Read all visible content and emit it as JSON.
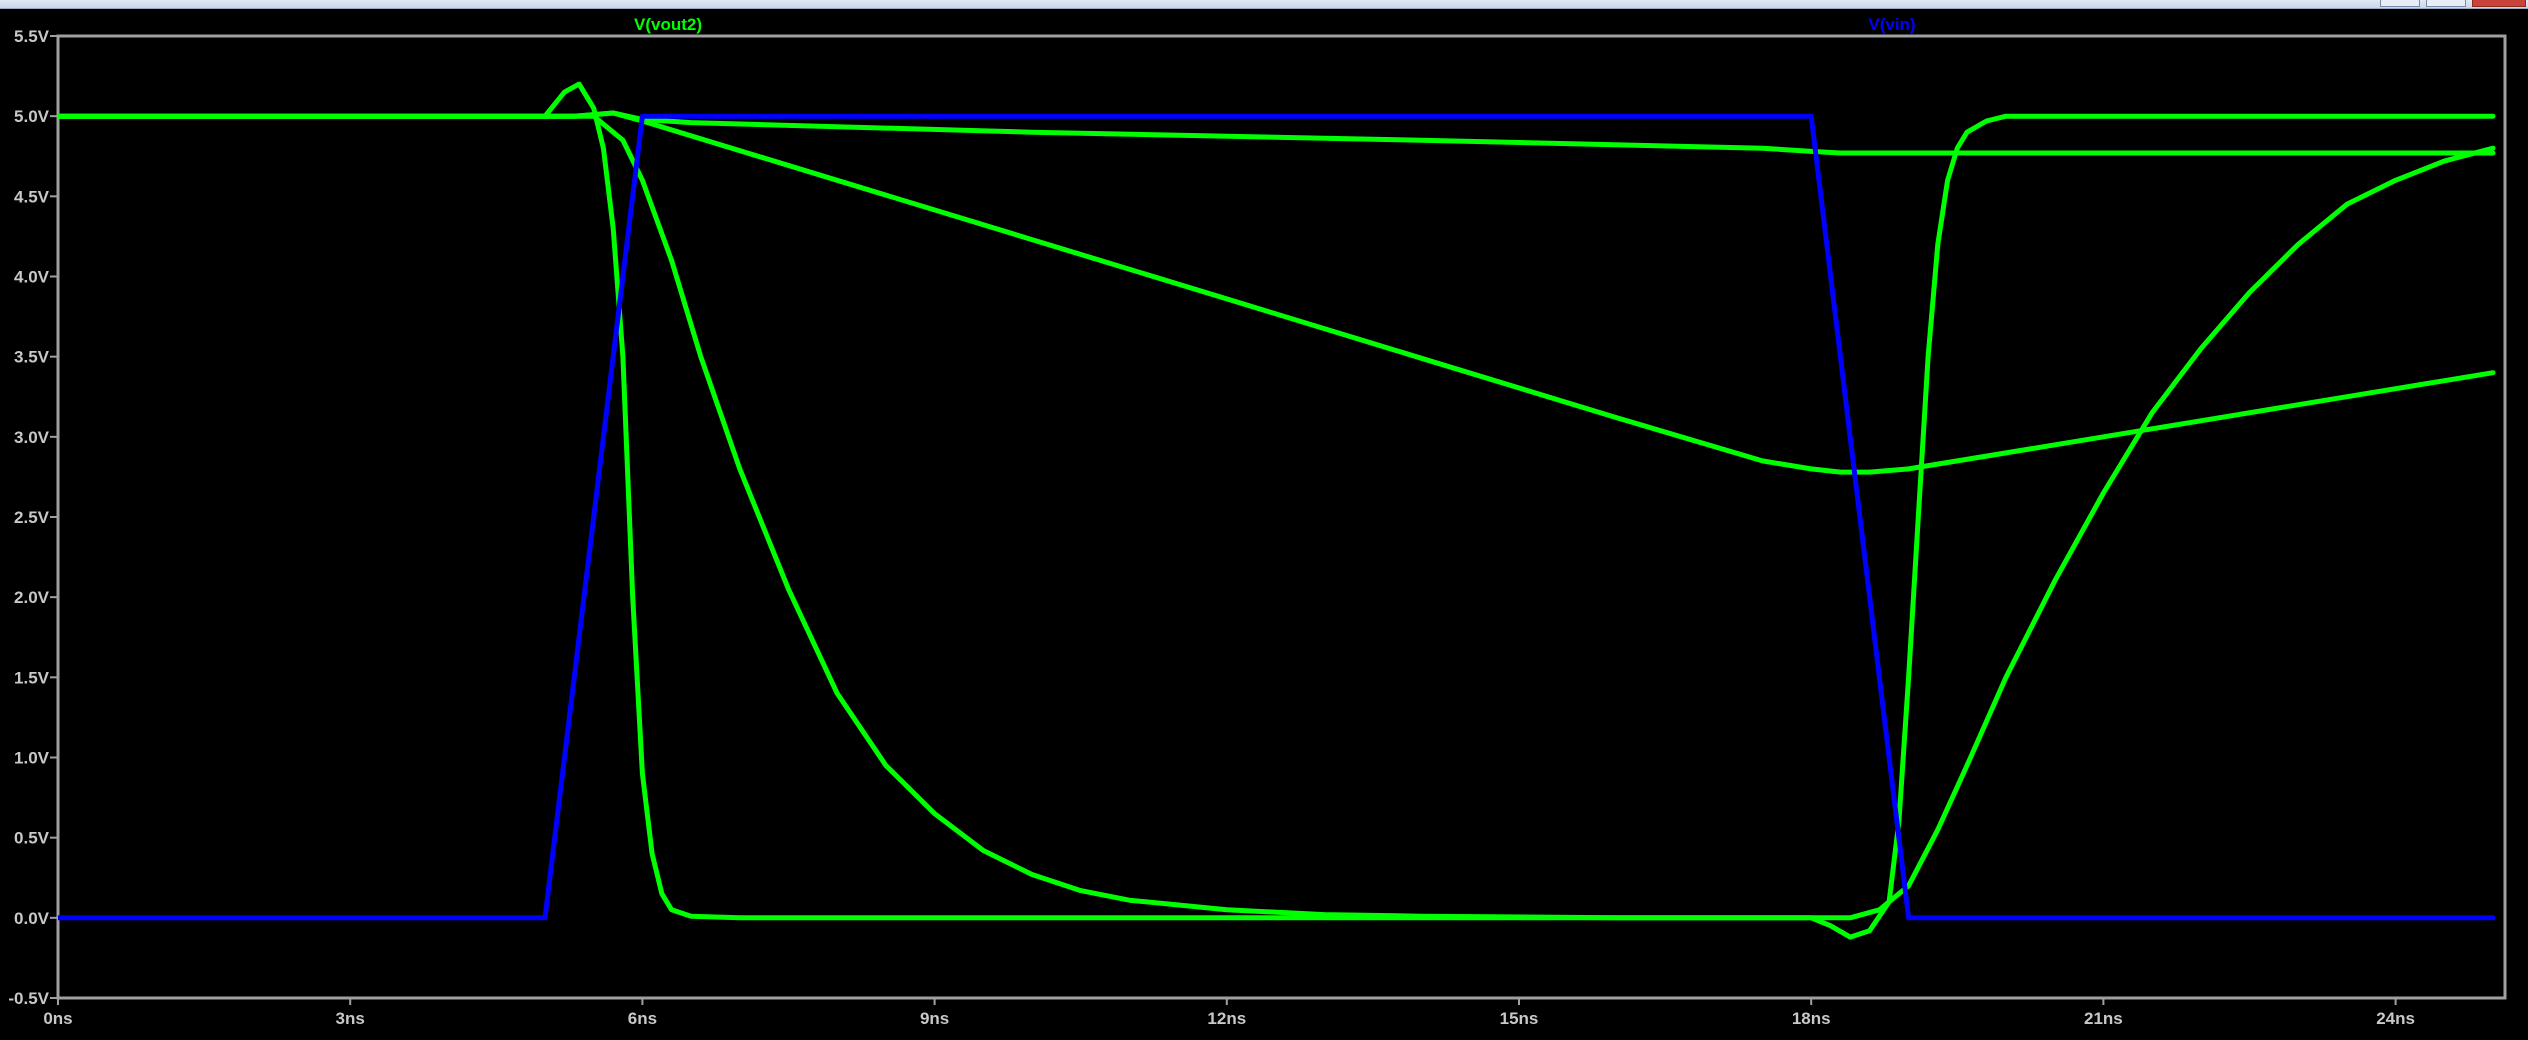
{
  "window": {
    "controls": [
      "minimize",
      "maximize",
      "close"
    ]
  },
  "chart_data": {
    "type": "line",
    "title": "",
    "xlabel": "",
    "ylabel": "",
    "xlim": [
      0,
      25
    ],
    "ylim": [
      -0.5,
      5.5
    ],
    "grid": false,
    "x_ticks": [
      "0ns",
      "3ns",
      "6ns",
      "9ns",
      "12ns",
      "15ns",
      "18ns",
      "21ns",
      "24ns"
    ],
    "x_tick_values": [
      0,
      3,
      6,
      9,
      12,
      15,
      18,
      21,
      24
    ],
    "y_ticks": [
      "5.5V",
      "5.0V",
      "4.5V",
      "4.0V",
      "3.5V",
      "3.0V",
      "2.5V",
      "2.0V",
      "1.5V",
      "1.0V",
      "0.5V",
      "0.0V",
      "-0.5V"
    ],
    "y_tick_values": [
      5.5,
      5.0,
      4.5,
      4.0,
      3.5,
      3.0,
      2.5,
      2.0,
      1.5,
      1.0,
      0.5,
      0.0,
      -0.5
    ],
    "legend": [
      {
        "name": "V(vout2)",
        "color": "#00ff00",
        "placement": "top-left"
      },
      {
        "name": "V(vin)",
        "color": "#0000ff",
        "placement": "top-right"
      }
    ],
    "series": [
      {
        "color": "#00ff00",
        "x": [
          0,
          5.0,
          5.2,
          5.35,
          5.5,
          5.6,
          5.7,
          5.8,
          5.9,
          6.0,
          6.1,
          6.2,
          6.3,
          6.5,
          7,
          10,
          17,
          18.0,
          18.2,
          18.4,
          18.6,
          18.8,
          18.9,
          19.0,
          19.1,
          19.2,
          19.3,
          19.4,
          19.5,
          19.6,
          19.8,
          20,
          20.5,
          21,
          22,
          24,
          25
        ],
        "y": [
          5.0,
          5.0,
          5.15,
          5.2,
          5.05,
          4.8,
          4.3,
          3.5,
          2.0,
          0.9,
          0.4,
          0.15,
          0.05,
          0.01,
          0.0,
          0.0,
          0.0,
          0.0,
          -0.05,
          -0.12,
          -0.08,
          0.1,
          0.6,
          1.5,
          2.5,
          3.5,
          4.2,
          4.6,
          4.8,
          4.9,
          4.97,
          5.0,
          5.0,
          5.0,
          5.0,
          5.0,
          5.0
        ]
      },
      {
        "color": "#00ff00",
        "x": [
          0,
          5.5,
          5.8,
          6.0,
          6.3,
          6.6,
          7.0,
          7.5,
          8.0,
          8.5,
          9.0,
          9.5,
          10,
          10.5,
          11,
          12,
          13,
          14,
          16,
          17.5,
          18.0,
          18.4,
          18.7,
          19.0,
          19.3,
          19.6,
          20,
          20.5,
          21,
          21.5,
          22,
          22.5,
          23,
          23.5,
          24,
          24.5,
          25
        ],
        "y": [
          5.0,
          5.0,
          4.85,
          4.6,
          4.1,
          3.5,
          2.8,
          2.05,
          1.4,
          0.95,
          0.65,
          0.42,
          0.27,
          0.17,
          0.11,
          0.05,
          0.02,
          0.01,
          0.0,
          0.0,
          0.0,
          0.0,
          0.05,
          0.2,
          0.55,
          0.95,
          1.5,
          2.1,
          2.65,
          3.15,
          3.55,
          3.9,
          4.2,
          4.45,
          4.6,
          4.72,
          4.8
        ]
      },
      {
        "color": "#00ff00",
        "x": [
          0,
          5.3,
          5.7,
          6.0,
          6.5,
          10,
          14,
          17.5,
          18.0,
          18.3,
          18.6,
          19.0,
          20,
          22,
          24,
          25
        ],
        "y": [
          5.0,
          5.0,
          5.02,
          4.98,
          4.96,
          4.9,
          4.85,
          4.8,
          4.78,
          4.77,
          4.77,
          4.77,
          4.77,
          4.77,
          4.77,
          4.77
        ]
      },
      {
        "color": "#00ff00",
        "x": [
          0,
          5.3,
          5.7,
          6.0,
          8,
          10,
          12,
          14,
          16,
          17.5,
          18.0,
          18.3,
          18.6,
          19.0,
          20,
          22,
          24,
          25
        ],
        "y": [
          5.0,
          5.0,
          5.02,
          4.97,
          4.6,
          4.23,
          3.86,
          3.49,
          3.12,
          2.85,
          2.8,
          2.78,
          2.78,
          2.8,
          2.9,
          3.1,
          3.3,
          3.4
        ]
      },
      {
        "name": "V(vin)",
        "color": "#0000ff",
        "x": [
          0,
          5.0,
          6.0,
          18.0,
          19.0,
          25
        ],
        "y": [
          0.0,
          0.0,
          5.0,
          5.0,
          0.0,
          0.0
        ]
      }
    ]
  }
}
